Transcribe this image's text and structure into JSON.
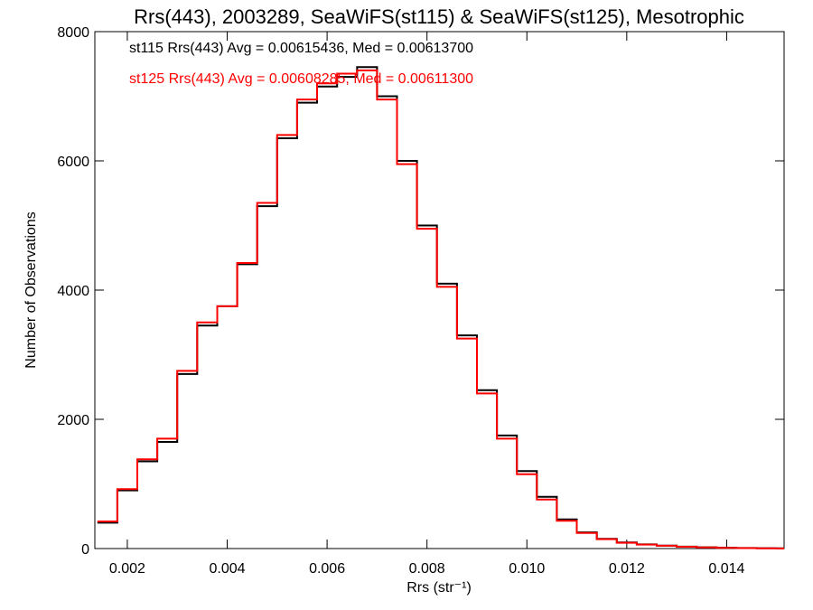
{
  "chart_data": {
    "type": "line",
    "step": true,
    "title": "Rrs(443), 2003289, SeaWiFS(st115) & SeaWiFS(st125), Mesotrophic",
    "xlabel": "Rrs (str⁻¹)",
    "ylabel": "Number of Observations",
    "xlim": [
      0.00135,
      0.01515
    ],
    "ylim": [
      0,
      8000
    ],
    "xticks": [
      0.002,
      0.004,
      0.006,
      0.008,
      0.01,
      0.012,
      0.014
    ],
    "xtick_labels": [
      "0.002",
      "0.004",
      "0.006",
      "0.008",
      "0.010",
      "0.012",
      "0.014"
    ],
    "yticks": [
      0,
      2000,
      4000,
      6000,
      8000
    ],
    "ytick_labels": [
      "0",
      "2000",
      "4000",
      "6000",
      "8000"
    ],
    "grid": false,
    "legend_position": "top-left",
    "legend": [
      "st115 Rrs(443) Avg = 0.00615436, Med = 0.00613700",
      "st125 Rrs(443) Avg = 0.00608285, Med = 0.00611300"
    ],
    "x": [
      0.0014,
      0.0018,
      0.0022,
      0.0026,
      0.003,
      0.0034,
      0.0038,
      0.0042,
      0.0046,
      0.005,
      0.0054,
      0.0058,
      0.0062,
      0.0066,
      0.007,
      0.0074,
      0.0078,
      0.0082,
      0.0086,
      0.009,
      0.0094,
      0.0098,
      0.0102,
      0.0106,
      0.011,
      0.0114,
      0.0118,
      0.0122,
      0.0126,
      0.013,
      0.0134,
      0.0138,
      0.0142,
      0.0146,
      0.015
    ],
    "series": [
      {
        "name": "st115",
        "color": "#000000",
        "values": [
          400,
          900,
          1350,
          1650,
          2700,
          3450,
          3750,
          4400,
          5300,
          6350,
          6900,
          7150,
          7300,
          7450,
          7000,
          6000,
          5000,
          4100,
          3300,
          2450,
          1750,
          1200,
          800,
          450,
          250,
          150,
          95,
          65,
          45,
          30,
          20,
          12,
          8,
          5,
          3
        ]
      },
      {
        "name": "st125",
        "color": "#ff0000",
        "values": [
          420,
          920,
          1380,
          1700,
          2750,
          3500,
          3750,
          4420,
          5350,
          6400,
          6950,
          7200,
          7350,
          7400,
          6950,
          5950,
          4950,
          4050,
          3250,
          2400,
          1700,
          1150,
          760,
          430,
          240,
          145,
          90,
          62,
          43,
          28,
          18,
          11,
          7,
          4,
          2
        ]
      }
    ]
  }
}
